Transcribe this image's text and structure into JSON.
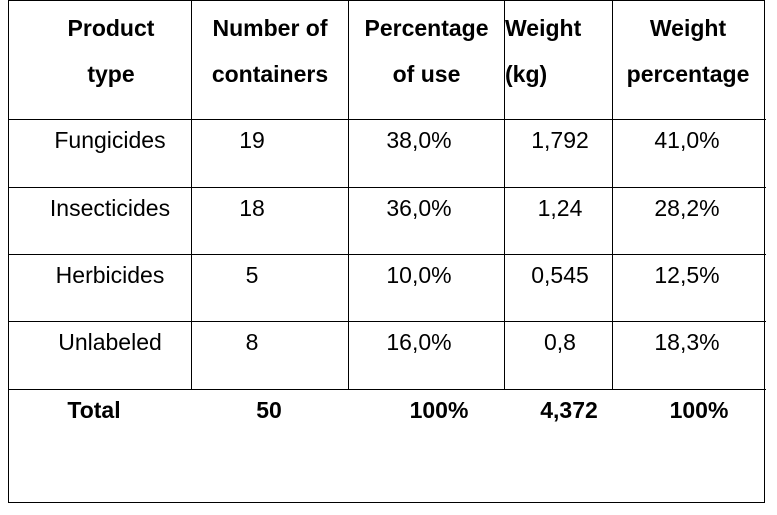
{
  "table": {
    "headers": [
      [
        "Product",
        "type"
      ],
      [
        "Number of",
        "containers"
      ],
      [
        "Percentage",
        "of use"
      ],
      [
        "Weight",
        "(kg)"
      ],
      [
        "Weight",
        "percentage"
      ]
    ],
    "rows": [
      [
        "Fungicides",
        "19",
        "38,0%",
        "1,792",
        "41,0%"
      ],
      [
        "Insecticides",
        "18",
        "36,0%",
        "1,24",
        "28,2%"
      ],
      [
        "Herbicides",
        "5",
        "10,0%",
        "0,545",
        "12,5%"
      ],
      [
        "Unlabeled",
        "8",
        "16,0%",
        "0,8",
        "18,3%"
      ]
    ],
    "total": [
      "Total",
      "50",
      "100%",
      "4,372",
      "100%"
    ]
  }
}
